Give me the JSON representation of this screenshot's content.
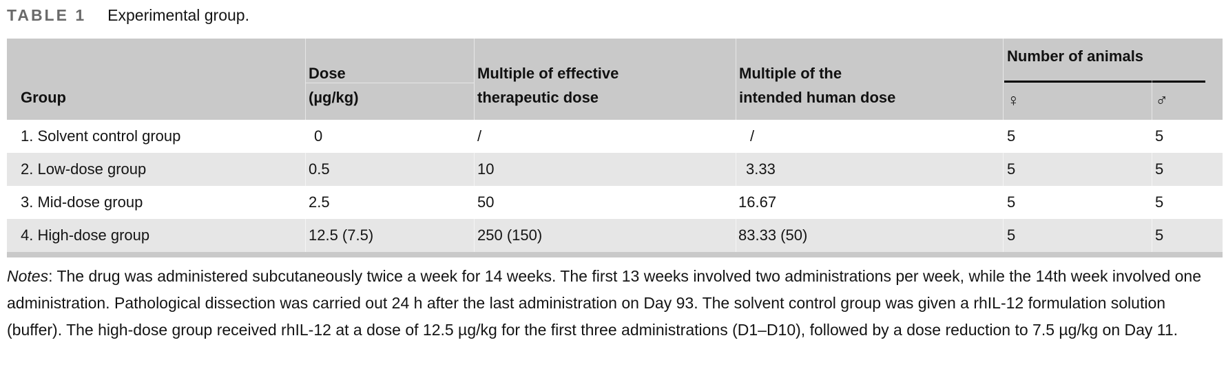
{
  "title": {
    "label": "TABLE 1",
    "text": "Experimental group."
  },
  "table": {
    "headers": {
      "group": "Group",
      "dose_line1": "Dose",
      "dose_line2": "(µg/kg)",
      "mult_eff_line1": "Multiple of effective",
      "mult_eff_line2": "therapeutic dose",
      "mult_int_line1": "Multiple of the",
      "mult_int_line2": "intended human dose",
      "animals_group": "Number of animals",
      "female": "♀",
      "male": "♂"
    },
    "rows": [
      {
        "cells": [
          "1. Solvent control group",
          "0",
          "/",
          "/",
          "5",
          "5"
        ]
      },
      {
        "cells": [
          "2. Low-dose group",
          "0.5",
          "10",
          "3.33",
          "5",
          "5"
        ]
      },
      {
        "cells": [
          "3. Mid-dose group",
          "2.5",
          "50",
          "16.67",
          "5",
          "5"
        ]
      },
      {
        "cells": [
          "4. High-dose group",
          "12.5 (7.5)",
          "250 (150)",
          "83.33 (50)",
          "5",
          "5"
        ]
      }
    ]
  },
  "notes": {
    "label": "Notes",
    "text": ": The drug was administered subcutaneously twice a week for 14 weeks. The first 13 weeks involved two administrations per week, while the 14th week involved one administration. Pathological dissection was carried out 24 h after the last administration on Day 93. The solvent control group was given a rhIL-12 formulation solution (buffer). The high-dose group received rhIL-12 at a dose of 12.5 µg/kg for the first three administrations (D1–D10), followed by a dose reduction to 7.5 µg/kg on Day 11."
  },
  "colors": {
    "header_bg": "#c9c9c9",
    "stripe_bg": "#e6e6e6",
    "title_label": "#6a6a6a",
    "rule": "#000000",
    "text": "#141414"
  }
}
